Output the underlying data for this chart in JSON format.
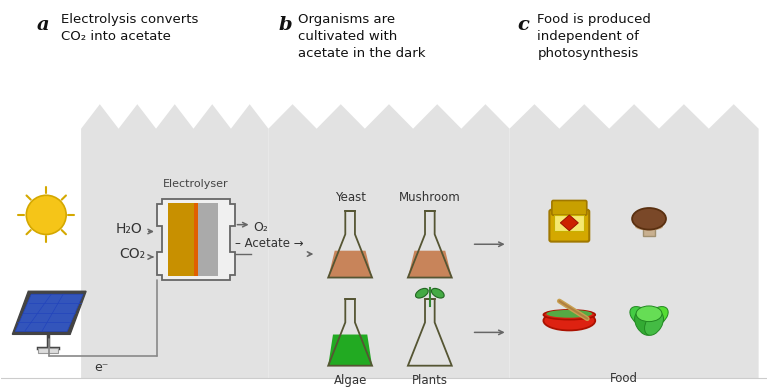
{
  "bg_color": "#ffffff",
  "panel_bg": "#e8e8e8",
  "title_a": "Electrolysis converts\nCO₂ into acetate",
  "title_b": "Organisms are\ncultivated with\nacetate in the dark",
  "title_c": "Food is produced\nindependent of\nphotosynthesis",
  "label_a": "a",
  "label_b": "b",
  "label_c": "c",
  "electrolyser_label": "Electrolyser",
  "h2o_label": "H₂O",
  "co2_label": "CO₂",
  "o2_label": "O₂",
  "acetate_label": "Acetate",
  "electron_label": "e⁻",
  "yeast_label": "Yeast",
  "mushroom_label": "Mushroom",
  "algae_label": "Algae",
  "plants_label": "Plants",
  "food_label": "Food",
  "sun_color": "#f5c518",
  "sun_outline": "#d4a800",
  "solar_blue": "#3355bb",
  "solar_frame": "#444444",
  "elec_box_color": "#f0f0f0",
  "electrode_gold": "#c89000",
  "electrode_gold2": "#e0a800",
  "electrode_orange": "#e06000",
  "electrode_gray": "#aaaaaa",
  "flask_outline": "#555533",
  "flask_brown": "#c8845a",
  "flask_green": "#22aa22",
  "flask_white": "#ffffff",
  "arrow_color": "#666666",
  "panel_border": "#cccccc"
}
